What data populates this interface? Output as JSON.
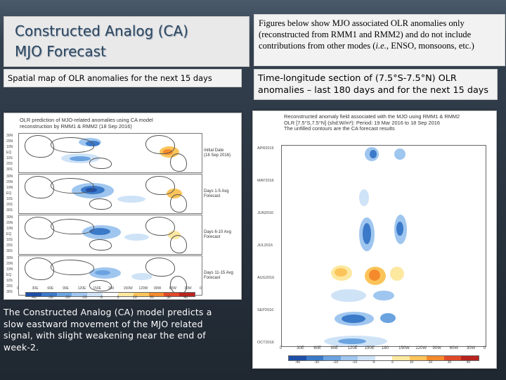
{
  "title": "Constructed Analog (CA)\nMJO Forecast",
  "description": {
    "main": "Figures below show MJO associated OLR anomalies only (reconstructed from RMM1 and RMM2) and do not include contributions from other modes (",
    "italic": "i.e.",
    "end": ", ENSO, monsoons, etc.)"
  },
  "left_subtitle": "Spatial map of OLR anomalies for the next 15 days",
  "right_subtitle": "Time-longitude section of (7.5°S-7.5°N) OLR anomalies – last 180 days and for the next 15 days",
  "left_figure": {
    "title": "OLR prediction of MJO-related anomalies using CA model\nreconstruction by RMM1 & RMM2 (18 Sep 2016)",
    "panels": [
      {
        "label": "Initial Date\n(18 Sep 2016)"
      },
      {
        "label": "Days 1-5 Avg\nForecast"
      },
      {
        "label": "Days 6-10 Avg\nForecast"
      },
      {
        "label": "Days 11-15 Avg\nForecast"
      }
    ],
    "lat_ticks": [
      "30N",
      "20N",
      "10N",
      "EQ",
      "10S",
      "20S",
      "30S"
    ],
    "lon_ticks": [
      "0",
      "30E",
      "60E",
      "90E",
      "120E",
      "150E",
      "180",
      "150W",
      "120W",
      "90W",
      "60W",
      "30W",
      "0"
    ],
    "colorbar_labels": [
      "-40",
      "-30",
      "-20",
      "-10",
      "-5",
      "5",
      "10",
      "20",
      "30",
      "40"
    ],
    "colorbar_colors": [
      "#1e4fa8",
      "#3b79c9",
      "#6aa3e0",
      "#9fc6ef",
      "#cfe3f7",
      "#ffffff",
      "#fde8a0",
      "#fbc45a",
      "#f48a2c",
      "#e0492a",
      "#b8231e"
    ]
  },
  "right_figure": {
    "title": "Reconstructed anomaly field associated with the MJO using RMM1 & RMM2\nOLR [7.5°S,7.5°N] (shd:W/m²): Period: 19 Mar 2016 to 18 Sep 2016\nThe unfilled contours are the CA forecast results",
    "months": [
      "APR2016",
      "MAY2016",
      "JUN2016",
      "JUL2016",
      "AUG2016",
      "SEP2016",
      "OCT2016"
    ],
    "lon_ticks": [
      "0",
      "30E",
      "60E",
      "90E",
      "120E",
      "150E",
      "180",
      "150W",
      "120W",
      "90W",
      "60W",
      "30W",
      "0"
    ],
    "colorbar_labels": [
      "-40",
      "-30",
      "-20",
      "-10",
      "-5",
      "5",
      "10",
      "20",
      "30",
      "40"
    ],
    "colorbar_colors": [
      "#1e4fa8",
      "#3b79c9",
      "#6aa3e0",
      "#9fc6ef",
      "#cfe3f7",
      "#ffffff",
      "#fde8a0",
      "#fbc45a",
      "#f48a2c",
      "#e0492a",
      "#b8231e"
    ]
  },
  "bottom_text": "The Constructed Analog (CA) model predicts a slow eastward movement of the MJO related signal, with slight weakening near the end of week-2."
}
